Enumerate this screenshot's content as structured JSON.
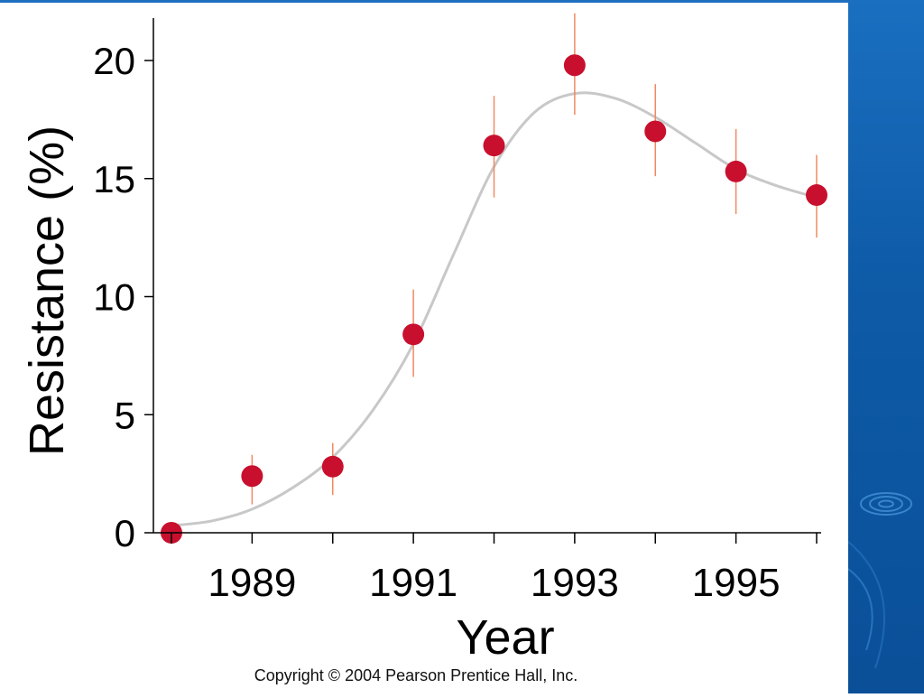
{
  "chart_data": {
    "type": "scatter",
    "xlabel": "Year",
    "ylabel": "Resistance (%)",
    "xlim": [
      1988,
      1996
    ],
    "ylim": [
      0,
      22
    ],
    "x_ticks": [
      1988,
      1989,
      1990,
      1991,
      1992,
      1993,
      1994,
      1995,
      1996
    ],
    "x_tick_labels": [
      {
        "x": 1989,
        "label": "1989"
      },
      {
        "x": 1991,
        "label": "1991"
      },
      {
        "x": 1993,
        "label": "1993"
      },
      {
        "x": 1995,
        "label": "1995"
      }
    ],
    "y_ticks": [
      {
        "y": 0,
        "label": "0"
      },
      {
        "y": 5,
        "label": "5"
      },
      {
        "y": 10,
        "label": "10"
      },
      {
        "y": 15,
        "label": "15"
      },
      {
        "y": 20,
        "label": "20"
      }
    ],
    "points": [
      {
        "x": 1988,
        "y": 0.0,
        "err_low": 0.0,
        "err_high": 0.0
      },
      {
        "x": 1989,
        "y": 2.4,
        "err_low": 1.2,
        "err_high": 3.3
      },
      {
        "x": 1990,
        "y": 2.8,
        "err_low": 1.6,
        "err_high": 3.8
      },
      {
        "x": 1991,
        "y": 8.4,
        "err_low": 6.6,
        "err_high": 10.3
      },
      {
        "x": 1992,
        "y": 16.4,
        "err_low": 14.2,
        "err_high": 18.5
      },
      {
        "x": 1993,
        "y": 19.8,
        "err_low": 17.7,
        "err_high": 22.0
      },
      {
        "x": 1994,
        "y": 17.0,
        "err_low": 15.1,
        "err_high": 19.0
      },
      {
        "x": 1995,
        "y": 15.3,
        "err_low": 13.5,
        "err_high": 17.1
      },
      {
        "x": 1996,
        "y": 14.3,
        "err_low": 12.5,
        "err_high": 16.0
      }
    ],
    "trend_curve": [
      {
        "x": 1988,
        "y": 0.3
      },
      {
        "x": 1988.5,
        "y": 0.5
      },
      {
        "x": 1989,
        "y": 1.0
      },
      {
        "x": 1989.5,
        "y": 1.9
      },
      {
        "x": 1990,
        "y": 3.2
      },
      {
        "x": 1990.5,
        "y": 5.2
      },
      {
        "x": 1991,
        "y": 8.0
      },
      {
        "x": 1991.5,
        "y": 11.8
      },
      {
        "x": 1992,
        "y": 15.5
      },
      {
        "x": 1992.5,
        "y": 17.8
      },
      {
        "x": 1993,
        "y": 18.6
      },
      {
        "x": 1993.5,
        "y": 18.4
      },
      {
        "x": 1994,
        "y": 17.6
      },
      {
        "x": 1994.5,
        "y": 16.5
      },
      {
        "x": 1995,
        "y": 15.4
      },
      {
        "x": 1995.5,
        "y": 14.7
      },
      {
        "x": 1996,
        "y": 14.2
      }
    ],
    "grid": false,
    "colors": {
      "point": "#c8102e",
      "error_bar": "#f08a60",
      "curve": "#c8c8c8",
      "axis": "#000000"
    }
  },
  "copyright": "Copyright © 2004 Pearson Prentice Hall, Inc.",
  "theme": {
    "side_panel_color": "#0e5ba8"
  }
}
